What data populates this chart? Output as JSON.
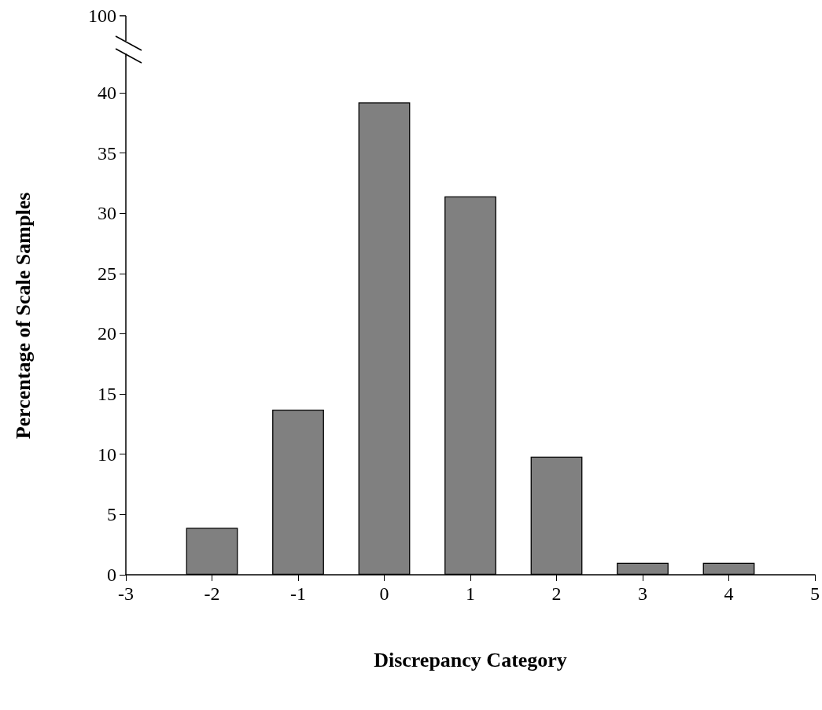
{
  "chart_data": {
    "type": "bar",
    "xlabel": "Discrepancy Category",
    "ylabel": "Percentage of Scale Samples",
    "x": [
      -2,
      -1,
      0,
      1,
      2,
      3,
      4
    ],
    "values": [
      3.9,
      13.7,
      39.2,
      31.4,
      9.8,
      1.0,
      1.0
    ],
    "color": "#808080",
    "xlim": [
      -3,
      5
    ],
    "xticks": [
      -3,
      -2,
      -1,
      0,
      1,
      2,
      3,
      4,
      5
    ],
    "ylim": [
      0,
      43
    ],
    "yticks": [
      0,
      5,
      10,
      15,
      20,
      25,
      30,
      35,
      40
    ],
    "annotations": [
      "100"
    ]
  }
}
